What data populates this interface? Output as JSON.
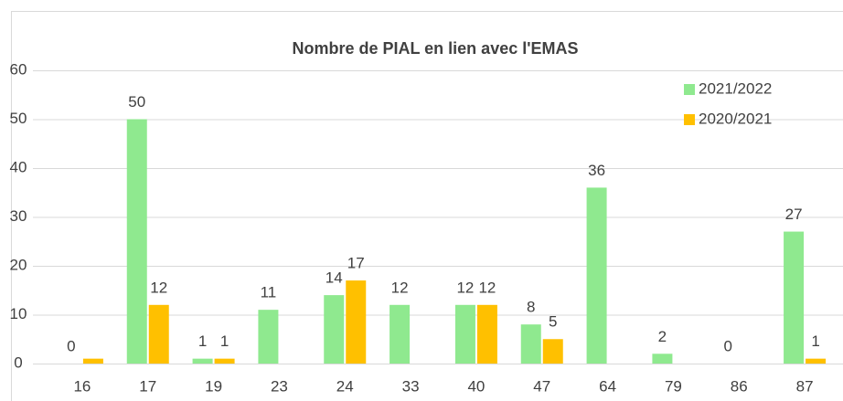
{
  "chart_data": {
    "type": "bar",
    "title": "Nombre de PIAL en lien avec l'EMAS",
    "categories": [
      "16",
      "17",
      "19",
      "23",
      "24",
      "33",
      "40",
      "47",
      "64",
      "79",
      "86",
      "87"
    ],
    "series": [
      {
        "name": "2021/2022",
        "color": "#8fe98f",
        "values": [
          0,
          50,
          1,
          11,
          14,
          12,
          12,
          8,
          36,
          2,
          0,
          27
        ]
      },
      {
        "name": "2020/2021",
        "color": "#ffc000",
        "values": [
          1,
          12,
          1,
          0,
          17,
          0,
          12,
          5,
          0,
          0,
          0,
          1
        ],
        "value_labels": [
          null,
          "12",
          "1",
          null,
          "17",
          null,
          "12",
          "5",
          null,
          null,
          null,
          "1"
        ]
      }
    ],
    "ylim": [
      0,
      60
    ],
    "yticks": [
      0,
      10,
      20,
      30,
      40,
      50,
      60
    ],
    "grid": true,
    "legend": "top-right"
  }
}
